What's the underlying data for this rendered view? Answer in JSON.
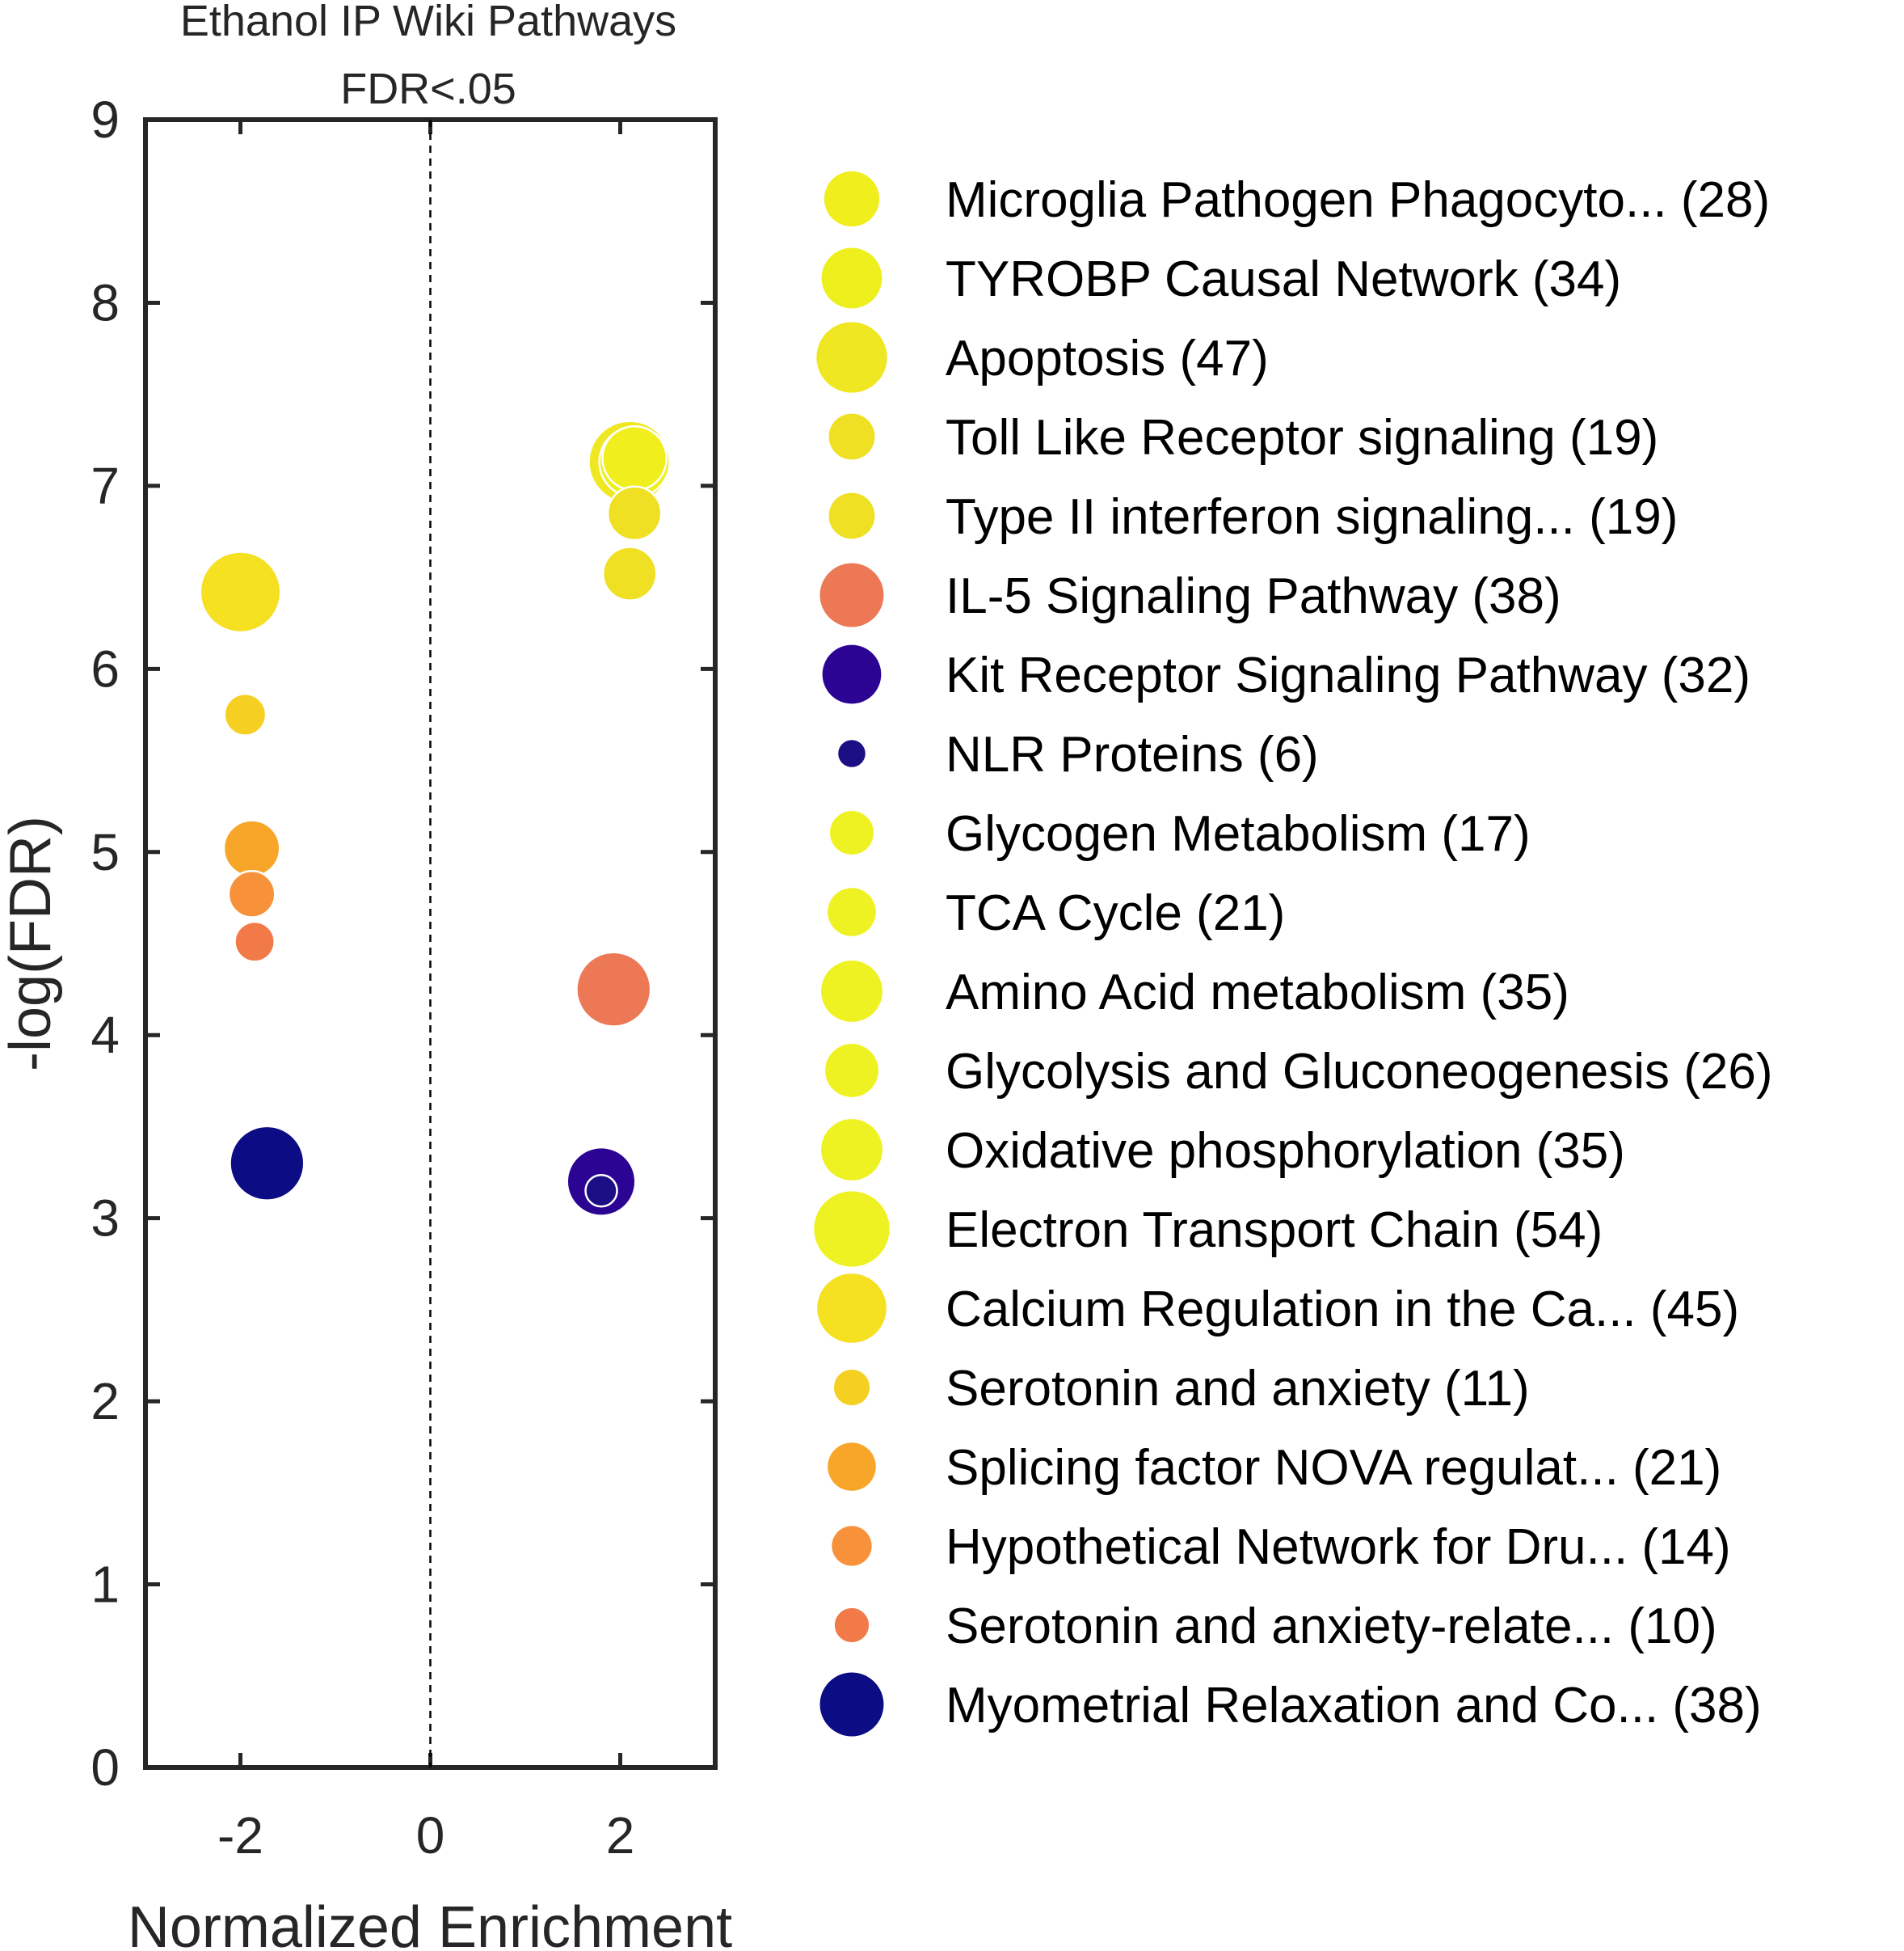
{
  "chart_data": {
    "type": "scatter",
    "title": [
      "Ethanol IP Wiki Pathways",
      "FDR<.05"
    ],
    "xlabel": "Normalized Enrichment",
    "ylabel": "-log(FDR)",
    "xlim": [
      -3,
      3
    ],
    "ylim": [
      0,
      9
    ],
    "xticks": [
      "-2",
      "0",
      "2"
    ],
    "yticks": [
      "0",
      "1",
      "2",
      "3",
      "4",
      "5",
      "6",
      "7",
      "8",
      "9"
    ],
    "reference_line": {
      "x": 0,
      "style": "dashed"
    },
    "legend_position": "right, outside plot",
    "grid": false,
    "series": [
      {
        "name": "Microglia Pathogen Phagocyto...",
        "count_label": "(28)",
        "x": 2.15,
        "y": 7.15,
        "size": 28,
        "color": "#f0ee1c"
      },
      {
        "name": "TYROBP Causal Network",
        "count_label": "(34)",
        "x": 2.15,
        "y": 7.13,
        "size": 34,
        "color": "#eef01e"
      },
      {
        "name": "Apoptosis",
        "count_label": "(47)",
        "x": 2.1,
        "y": 7.13,
        "size": 47,
        "color": "#efe721"
      },
      {
        "name": "Toll Like Receptor signaling",
        "count_label": "(19)",
        "x": 2.15,
        "y": 6.85,
        "size": 19,
        "color": "#efe024"
      },
      {
        "name": "Type II interferon signaling...",
        "count_label": "(19)",
        "x": 2.1,
        "y": 6.52,
        "size": 19,
        "color": "#efe024"
      },
      {
        "name": "IL-5 Signaling Pathway",
        "count_label": "(38)",
        "x": 1.93,
        "y": 4.25,
        "size": 38,
        "color": "#ec7856"
      },
      {
        "name": "Kit Receptor Signaling Pathway",
        "count_label": "(32)",
        "x": 1.8,
        "y": 3.2,
        "size": 32,
        "color": "#2c0494"
      },
      {
        "name": "NLR Proteins",
        "count_label": "(6)",
        "x": 1.8,
        "y": 3.15,
        "size": 6,
        "color": "#1c0e84"
      },
      {
        "name": "Glycogen Metabolism",
        "count_label": "(17)",
        "x": null,
        "y": null,
        "size": 17,
        "color": "#eff222"
      },
      {
        "name": "TCA Cycle",
        "count_label": "(21)",
        "x": null,
        "y": null,
        "size": 21,
        "color": "#eff222"
      },
      {
        "name": "Amino Acid metabolism",
        "count_label": "(35)",
        "x": null,
        "y": null,
        "size": 35,
        "color": "#eff222"
      },
      {
        "name": "Glycolysis and Gluconeogenesis",
        "count_label": "(26)",
        "x": null,
        "y": null,
        "size": 26,
        "color": "#eff222"
      },
      {
        "name": "Oxidative phosphorylation",
        "count_label": "(35)",
        "x": null,
        "y": null,
        "size": 35,
        "color": "#eff222"
      },
      {
        "name": "Electron Transport Chain",
        "count_label": "(54)",
        "x": null,
        "y": null,
        "size": 54,
        "color": "#eff222"
      },
      {
        "name": "Calcium Regulation in the Ca...",
        "count_label": "(45)",
        "x": -2.0,
        "y": 6.42,
        "size": 45,
        "color": "#f5e022"
      },
      {
        "name": "Serotonin and anxiety",
        "count_label": "(11)",
        "x": -1.95,
        "y": 5.75,
        "size": 11,
        "color": "#f5d022"
      },
      {
        "name": "Splicing factor NOVA regulat...",
        "count_label": "(21)",
        "x": -1.88,
        "y": 5.02,
        "size": 21,
        "color": "#f8a62a"
      },
      {
        "name": "Hypothetical Network for Dru...",
        "count_label": "(14)",
        "x": -1.88,
        "y": 4.77,
        "size": 14,
        "color": "#f8923a"
      },
      {
        "name": "Serotonin and anxiety-relate...",
        "count_label": "(10)",
        "x": -1.85,
        "y": 4.51,
        "size": 10,
        "color": "#f27a48"
      },
      {
        "name": "Myometrial Relaxation and Co...",
        "count_label": "(38)",
        "x": -1.72,
        "y": 3.3,
        "size": 38,
        "color": "#0c0c84"
      }
    ]
  }
}
